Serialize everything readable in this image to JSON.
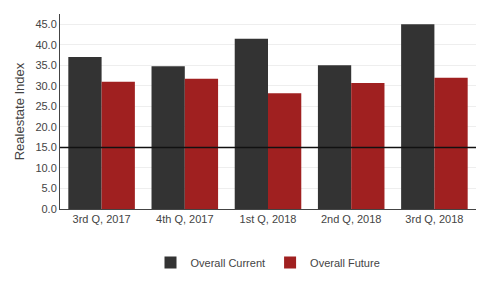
{
  "chart_data": {
    "type": "bar",
    "y_label": "Realestate Index",
    "categories": [
      "3rd Q, 2017",
      "4th Q, 2017",
      "1st Q, 2018",
      "2nd Q, 2018",
      "3rd Q, 2018"
    ],
    "series": [
      {
        "name": "Overall Current",
        "color": "#333333",
        "values": [
          37.0,
          34.8,
          41.5,
          35.0,
          45.0
        ]
      },
      {
        "name": "Overall Future",
        "color": "#a02020",
        "values": [
          31.0,
          31.7,
          28.2,
          30.7,
          32.0
        ]
      }
    ],
    "reference_line": {
      "value": 15.0,
      "color": "#111111"
    },
    "ylim": [
      0,
      47.5
    ],
    "yticks": [
      {
        "value": 0,
        "label": "0.0"
      },
      {
        "value": 5,
        "label": "5.0"
      },
      {
        "value": 10,
        "label": "10.0"
      },
      {
        "value": 15,
        "label": "15.0"
      },
      {
        "value": 20,
        "label": "20.0"
      },
      {
        "value": 25,
        "label": "25.0"
      },
      {
        "value": 30,
        "label": "30.0"
      },
      {
        "value": 35,
        "label": "35.0"
      },
      {
        "value": 40,
        "label": "40.0"
      },
      {
        "value": 45,
        "label": "45.0"
      }
    ],
    "grid": true,
    "legend": "bottom"
  }
}
